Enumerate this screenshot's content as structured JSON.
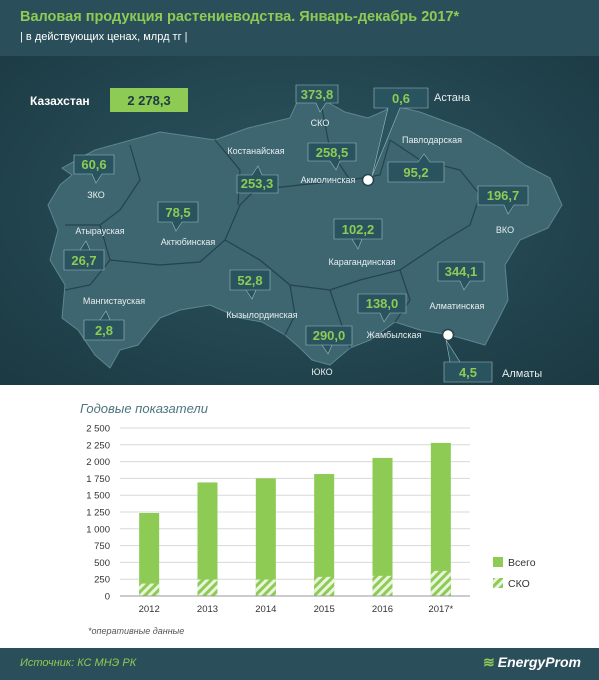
{
  "header": {
    "title": "Валовая продукция растениеводства. Январь-декабрь 2017*",
    "subtitle": "| в действующих ценах, млрд тг |"
  },
  "map": {
    "country": {
      "name": "Казахстан",
      "value": "2 278,3"
    },
    "regions": [
      {
        "name": "СКО",
        "value": "373,8"
      },
      {
        "name": "Астана",
        "value": "0,6"
      },
      {
        "name": "Павлодарская",
        "value": "95,2"
      },
      {
        "name": "Костанайская",
        "value": "253,3"
      },
      {
        "name": "Акмолинская",
        "value": "258,5"
      },
      {
        "name": "ЗКО",
        "value": "60,6"
      },
      {
        "name": "Актюбинская",
        "value": "78,5"
      },
      {
        "name": "ВКО",
        "value": "196,7"
      },
      {
        "name": "Атырауская",
        "value": "26,7"
      },
      {
        "name": "Карагандинская",
        "value": "102,2"
      },
      {
        "name": "Мангистауская",
        "value": "2,8"
      },
      {
        "name": "Кызылординская",
        "value": "52,8"
      },
      {
        "name": "Алматинская",
        "value": "344,1"
      },
      {
        "name": "Жамбылская",
        "value": "138,0"
      },
      {
        "name": "ЮКО",
        "value": "290,0"
      },
      {
        "name": "Алматы",
        "value": "4,5"
      }
    ]
  },
  "chart_data": {
    "type": "bar",
    "title": "Годовые показатели",
    "categories": [
      "2012",
      "2013",
      "2014",
      "2015",
      "2016",
      "2017*"
    ],
    "series": [
      {
        "name": "Всего",
        "values": [
          1235,
          1690,
          1750,
          1815,
          2055,
          2278.3
        ],
        "color": "#8dcb54"
      },
      {
        "name": "СКО",
        "values": [
          185,
          245,
          245,
          285,
          300,
          373.8
        ],
        "color": "#8dcb54",
        "pattern": "hatched"
      }
    ],
    "ylim": [
      0,
      2500
    ],
    "yticks": [
      "0",
      "250",
      "500",
      "750",
      "1 000",
      "1 250",
      "1 500",
      "1 750",
      "2 000",
      "2 250",
      "2 500"
    ],
    "grid": true,
    "legend_position": "right",
    "note": "*оперативные данные"
  },
  "footer": {
    "source": "Источник: КС МНЭ РК",
    "logo": "EnergyProm"
  },
  "colors": {
    "header_bg": "#2b4f5a",
    "accent_green": "#8dcb54",
    "map_land": "#3d6670",
    "map_background": "#234650"
  }
}
